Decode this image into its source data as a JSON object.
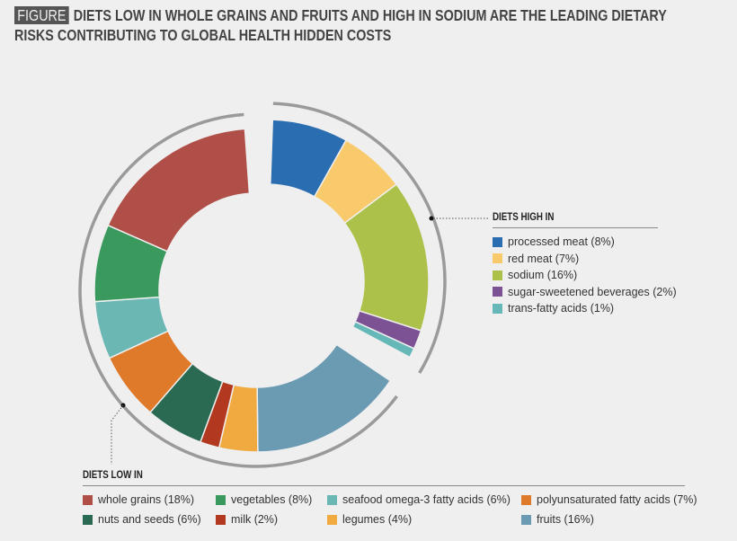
{
  "title": {
    "tag": "FIGURE",
    "line1": "DIETS LOW IN WHOLE GRAINS AND FRUITS AND HIGH IN SODIUM ARE THE LEADING DIETARY",
    "line2": "RISKS CONTRIBUTING TO GLOBAL HEALTH HIDDEN COSTS"
  },
  "chart_data": {
    "type": "pie",
    "title": "Diets low in whole grains and fruits and high in sodium are the leading dietary risks contributing to global health hidden costs",
    "unit": "%",
    "groups": [
      {
        "name": "DIETS HIGH IN",
        "items": [
          {
            "label": "processed meat (8%)",
            "name": "processed meat",
            "value": 8,
            "color": "#2a6db0"
          },
          {
            "label": "red meat (7%)",
            "name": "red meat",
            "value": 7,
            "color": "#f9ca6b"
          },
          {
            "label": "sodium (16%)",
            "name": "sodium",
            "value": 16,
            "color": "#acc14a"
          },
          {
            "label": "sugar-sweetened beverages (2%)",
            "name": "sugar-sweetened beverages",
            "value": 2,
            "color": "#7c5294"
          },
          {
            "label": "trans-fatty acids (1%)",
            "name": "trans-fatty acids",
            "value": 1,
            "color": "#66b8b8"
          }
        ]
      },
      {
        "name": "DIETS LOW IN",
        "items": [
          {
            "label": "whole grains (18%)",
            "name": "whole grains",
            "value": 18,
            "color": "#b04f48"
          },
          {
            "label": "vegetables (8%)",
            "name": "vegetables",
            "value": 8,
            "color": "#3a9a5e"
          },
          {
            "label": "seafood omega-3 fatty acids (6%)",
            "name": "seafood omega-3 fatty acids",
            "value": 6,
            "color": "#6bb7b4"
          },
          {
            "label": "polyunsaturated fatty acids (7%)",
            "name": "polyunsaturated fatty acids",
            "value": 7,
            "color": "#e07a2b"
          },
          {
            "label": "nuts and seeds (6%)",
            "name": "nuts and seeds",
            "value": 6,
            "color": "#2a6a53"
          },
          {
            "label": "milk (2%)",
            "name": "milk",
            "value": 2,
            "color": "#b2391f"
          },
          {
            "label": "legumes (4%)",
            "name": "legumes",
            "value": 4,
            "color": "#f0aa40"
          },
          {
            "label": "fruits (16%)",
            "name": "fruits",
            "value": 16,
            "color": "#6b9bb2"
          }
        ]
      }
    ]
  }
}
